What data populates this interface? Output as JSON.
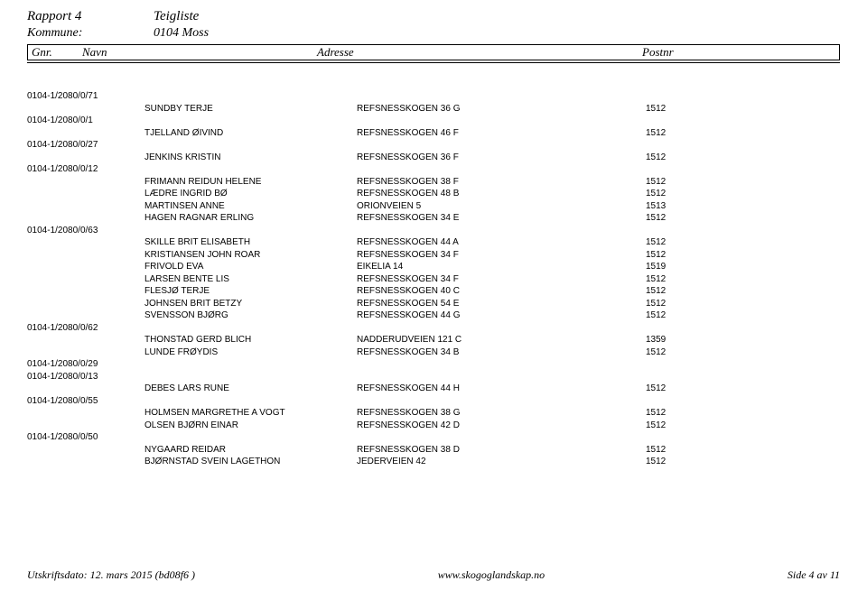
{
  "header": {
    "rapport_label": "Rapport 4",
    "teigliste_label": "Teigliste",
    "kommune_label": "Kommune:",
    "kommune_value": "0104 Moss",
    "col_gnr": "Gnr.",
    "col_navn": "Navn",
    "col_addr": "Adresse",
    "col_post": "Postnr"
  },
  "rows": [
    {
      "id": "0104-1/2080/0/71",
      "name": "",
      "addr": "",
      "post": ""
    },
    {
      "id": "",
      "name": "SUNDBY TERJE",
      "addr": "REFSNESSKOGEN 36 G",
      "post": "1512"
    },
    {
      "id": "0104-1/2080/0/1",
      "name": "",
      "addr": "",
      "post": ""
    },
    {
      "id": "",
      "name": "TJELLAND ØIVIND",
      "addr": "REFSNESSKOGEN 46 F",
      "post": "1512"
    },
    {
      "id": "0104-1/2080/0/27",
      "name": "",
      "addr": "",
      "post": ""
    },
    {
      "id": "",
      "name": "JENKINS KRISTIN",
      "addr": "REFSNESSKOGEN 36 F",
      "post": "1512"
    },
    {
      "id": "0104-1/2080/0/12",
      "name": "",
      "addr": "",
      "post": ""
    },
    {
      "id": "",
      "name": "FRIMANN REIDUN HELENE",
      "addr": "REFSNESSKOGEN 38 F",
      "post": "1512"
    },
    {
      "id": "",
      "name": "LÆDRE INGRID BØ",
      "addr": "REFSNESSKOGEN 48 B",
      "post": "1512"
    },
    {
      "id": "",
      "name": "MARTINSEN ANNE",
      "addr": "ORIONVEIEN 5",
      "post": "1513"
    },
    {
      "id": "",
      "name": "HAGEN RAGNAR ERLING",
      "addr": "REFSNESSKOGEN 34 E",
      "post": "1512"
    },
    {
      "id": "0104-1/2080/0/63",
      "name": "",
      "addr": "",
      "post": ""
    },
    {
      "id": "",
      "name": "SKILLE BRIT ELISABETH",
      "addr": "REFSNESSKOGEN 44 A",
      "post": "1512"
    },
    {
      "id": "",
      "name": "KRISTIANSEN JOHN ROAR",
      "addr": "REFSNESSKOGEN 34 F",
      "post": "1512"
    },
    {
      "id": "",
      "name": "FRIVOLD EVA",
      "addr": "EIKELIA 14",
      "post": "1519"
    },
    {
      "id": "",
      "name": "LARSEN BENTE LIS",
      "addr": "REFSNESSKOGEN 34 F",
      "post": "1512"
    },
    {
      "id": "",
      "name": "FLESJØ TERJE",
      "addr": "REFSNESSKOGEN 40 C",
      "post": "1512"
    },
    {
      "id": "",
      "name": "JOHNSEN BRIT BETZY",
      "addr": "REFSNESSKOGEN 54 E",
      "post": "1512"
    },
    {
      "id": "",
      "name": "SVENSSON BJØRG",
      "addr": "REFSNESSKOGEN 44 G",
      "post": "1512"
    },
    {
      "id": "0104-1/2080/0/62",
      "name": "",
      "addr": "",
      "post": ""
    },
    {
      "id": "",
      "name": "THONSTAD GERD BLICH",
      "addr": "NADDERUDVEIEN 121 C",
      "post": "1359"
    },
    {
      "id": "",
      "name": "LUNDE FRØYDIS",
      "addr": "REFSNESSKOGEN 34 B",
      "post": "1512"
    },
    {
      "id": "0104-1/2080/0/29",
      "name": "",
      "addr": "",
      "post": ""
    },
    {
      "id": "0104-1/2080/0/13",
      "name": "",
      "addr": "",
      "post": ""
    },
    {
      "id": "",
      "name": "DEBES LARS RUNE",
      "addr": "REFSNESSKOGEN 44 H",
      "post": "1512"
    },
    {
      "id": "0104-1/2080/0/55",
      "name": "",
      "addr": "",
      "post": ""
    },
    {
      "id": "",
      "name": "HOLMSEN MARGRETHE A VOGT",
      "addr": "REFSNESSKOGEN 38 G",
      "post": "1512"
    },
    {
      "id": "",
      "name": "OLSEN BJØRN EINAR",
      "addr": "REFSNESSKOGEN 42 D",
      "post": "1512"
    },
    {
      "id": "0104-1/2080/0/50",
      "name": "",
      "addr": "",
      "post": ""
    },
    {
      "id": "",
      "name": "NYGAARD REIDAR",
      "addr": "REFSNESSKOGEN 38 D",
      "post": "1512"
    },
    {
      "id": "",
      "name": "BJØRNSTAD SVEIN LAGETHON",
      "addr": "JEDERVEIEN 42",
      "post": "1512"
    }
  ],
  "footer": {
    "date": "Utskriftsdato: 12. mars 2015 (bd08f6 )",
    "url": "www.skogoglandskap.no",
    "page": "Side 4 av 11"
  }
}
